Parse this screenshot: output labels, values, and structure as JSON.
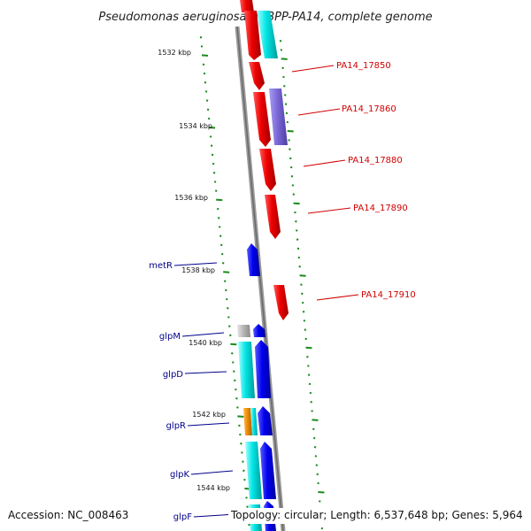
{
  "title": "Pseudomonas aeruginosa UCBPP-PA14, complete genome",
  "footer": {
    "accession": "Accession: NC_008463",
    "summary": "Topology: circular; Length: 6,537,648 bp; Genes: 5,964"
  },
  "ticks": [
    "1532 kbp",
    "1534 kbp",
    "1536 kbp",
    "1538 kbp",
    "1540 kbp",
    "1542 kbp",
    "1544 kbp"
  ],
  "gene_labels": {
    "right": [
      "PA14_17850",
      "PA14_17860",
      "PA14_17880",
      "PA14_17890",
      "PA14_17910"
    ],
    "left": [
      "metR",
      "glpM",
      "glpD",
      "glpR",
      "glpK",
      "glpF"
    ]
  },
  "colors": {
    "red": "#ee0000",
    "blue": "#0000ee",
    "cyan": "#00e5e5",
    "purple": "#7b68d8",
    "orange": "#f08c00",
    "gray": "#b8b8b8",
    "backbone": "#8a8a8a",
    "tick_green": "#1a8a1a"
  }
}
